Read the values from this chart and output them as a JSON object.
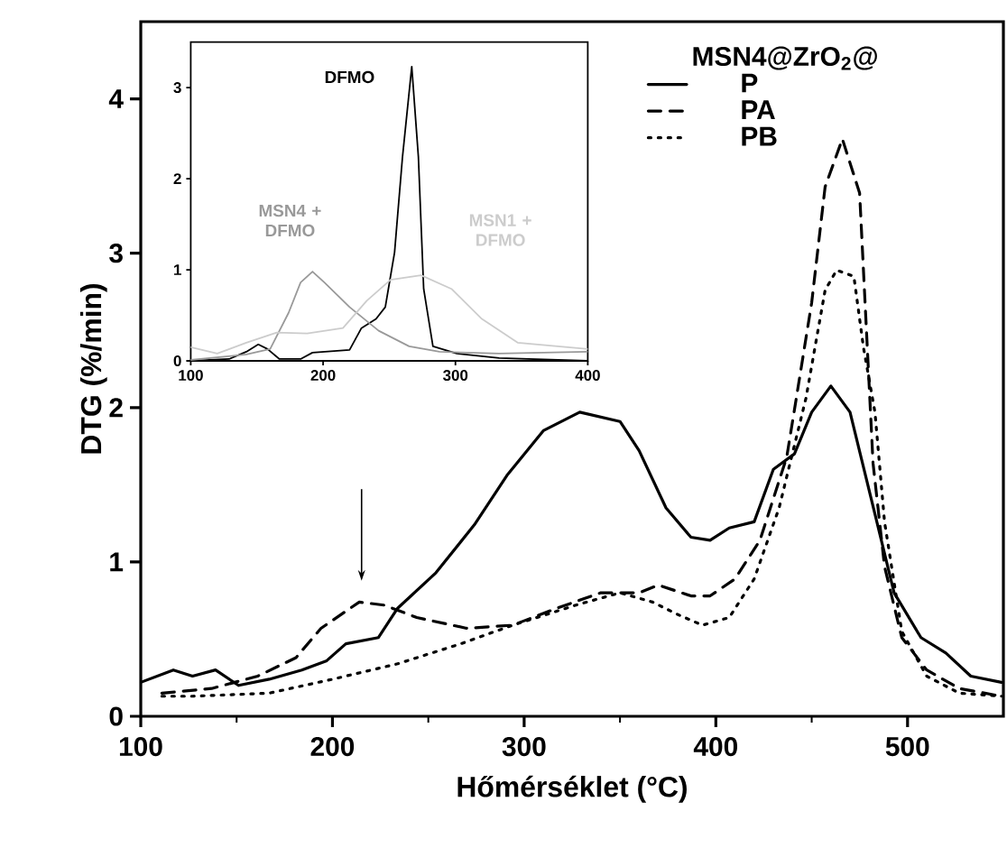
{
  "chart_data": [
    {
      "type": "line",
      "xlabel": "Hőmérséklet (°C)",
      "ylabel": "DTG (%/min)",
      "xlim": [
        100,
        550
      ],
      "ylim": [
        0,
        4.5
      ],
      "xticks": [
        100,
        200,
        300,
        400,
        500
      ],
      "yticks": [
        0,
        1,
        2,
        3,
        4
      ],
      "legend": "top right",
      "legend_title": "MSN4@ZrO$_{2}$@",
      "grid": false,
      "series": [
        {
          "name": "P",
          "color": "#000000",
          "line_style": "solid",
          "x": [
            100,
            117,
            127,
            139,
            151,
            167,
            184,
            197,
            207,
            224,
            234,
            254,
            274,
            291,
            310,
            329,
            350,
            360,
            374,
            387,
            397,
            407,
            420,
            430,
            441,
            450,
            460,
            470,
            483,
            493,
            507,
            520,
            533,
            549
          ],
          "values": [
            0.22,
            0.3,
            0.26,
            0.3,
            0.2,
            0.24,
            0.3,
            0.36,
            0.47,
            0.51,
            0.7,
            0.93,
            1.24,
            1.56,
            1.85,
            1.97,
            1.91,
            1.72,
            1.35,
            1.16,
            1.14,
            1.22,
            1.26,
            1.6,
            1.7,
            1.97,
            2.14,
            1.97,
            1.31,
            0.8,
            0.51,
            0.41,
            0.26,
            0.22
          ]
        },
        {
          "name": "PA",
          "color": "#000000",
          "line_style": "dashed",
          "x": [
            111,
            137,
            161,
            181,
            194,
            214,
            227,
            244,
            270,
            294,
            317,
            340,
            360,
            370,
            387,
            397,
            410,
            423,
            437,
            443,
            450,
            457,
            466,
            475,
            480,
            482,
            488,
            497,
            510,
            527,
            549
          ],
          "values": [
            0.15,
            0.18,
            0.26,
            0.38,
            0.57,
            0.74,
            0.72,
            0.64,
            0.57,
            0.59,
            0.7,
            0.8,
            0.8,
            0.85,
            0.78,
            0.78,
            0.89,
            1.14,
            1.68,
            2.14,
            2.68,
            3.43,
            3.74,
            3.39,
            2.14,
            1.64,
            0.97,
            0.51,
            0.3,
            0.18,
            0.13
          ]
        },
        {
          "name": "PB",
          "color": "#000000",
          "line_style": "dotted",
          "x": [
            111,
            127,
            167,
            200,
            234,
            267,
            294,
            327,
            350,
            367,
            380,
            393,
            407,
            420,
            433,
            447,
            457,
            463,
            472,
            477,
            483,
            488,
            497,
            510,
            527,
            549
          ],
          "values": [
            0.13,
            0.13,
            0.15,
            0.24,
            0.34,
            0.47,
            0.59,
            0.72,
            0.8,
            0.74,
            0.66,
            0.59,
            0.64,
            0.89,
            1.35,
            2.06,
            2.76,
            2.89,
            2.85,
            2.39,
            1.97,
            1.26,
            0.55,
            0.26,
            0.15,
            0.13
          ]
        }
      ]
    },
    {
      "type": "line",
      "xlim": [
        100,
        400
      ],
      "ylim": [
        0,
        3.5
      ],
      "xticks": [
        100,
        200,
        300,
        400
      ],
      "yticks": [
        0,
        1,
        2,
        3
      ],
      "legend": false,
      "series": [
        {
          "name": "DFMO",
          "color": "#000000",
          "x": [
            100,
            129,
            142,
            151,
            158,
            167,
            183,
            192,
            220,
            229,
            240,
            247,
            254,
            260,
            267,
            272,
            276,
            283,
            301,
            333,
            400
          ],
          "values": [
            0,
            0.02,
            0.1,
            0.18,
            0.13,
            0.02,
            0.02,
            0.09,
            0.12,
            0.36,
            0.46,
            0.59,
            1.19,
            2.24,
            3.23,
            2.24,
            0.79,
            0.16,
            0.08,
            0.03,
            0
          ]
        },
        {
          "name": "MSN4 + DFMO",
          "color": "#999999",
          "x": [
            100,
            142,
            160,
            174,
            183,
            192,
            201,
            220,
            242,
            265,
            288,
            333,
            400
          ],
          "values": [
            0.01,
            0.07,
            0.13,
            0.53,
            0.86,
            0.98,
            0.86,
            0.59,
            0.33,
            0.16,
            0.1,
            0.08,
            0.1
          ]
        },
        {
          "name": "MSN1 + DFMO",
          "color": "#cccccc",
          "x": [
            100,
            120,
            142,
            165,
            188,
            215,
            233,
            251,
            274,
            297,
            320,
            347,
            400
          ],
          "values": [
            0.15,
            0.08,
            0.2,
            0.31,
            0.3,
            0.36,
            0.66,
            0.89,
            0.94,
            0.79,
            0.46,
            0.2,
            0.13
          ]
        }
      ]
    }
  ]
}
